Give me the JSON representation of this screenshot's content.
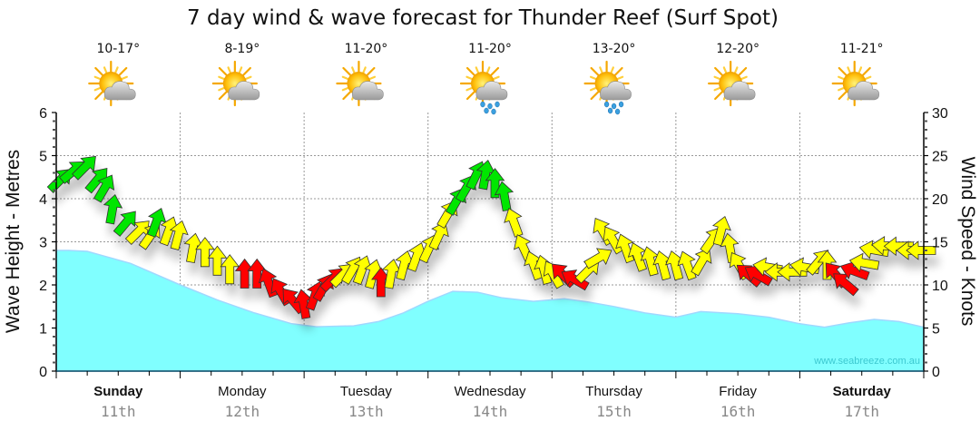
{
  "chart_data": {
    "type": "area",
    "title": "7 day wind & wave forecast for Thunder Reef (Surf Spot)",
    "ylabel_left": "Wave Height - Metres",
    "ylabel_right": "Wind Speed - Knots",
    "ylim_left": [
      0,
      6
    ],
    "ylim_right": [
      0,
      30
    ],
    "yticks_left": [
      "0",
      "1",
      "2",
      "3",
      "4",
      "5",
      "6"
    ],
    "yticks_right": [
      "0",
      "5",
      "10",
      "15",
      "20",
      "25",
      "30"
    ],
    "grid": true,
    "watermark": "www.seabreeze.com.au",
    "days": [
      {
        "name": "Sunday",
        "date": "11th",
        "bold": true,
        "temp": "10-17°",
        "icon": "partly-cloudy-icon"
      },
      {
        "name": "Monday",
        "date": "12th",
        "bold": false,
        "temp": "8-19°",
        "icon": "partly-cloudy-icon"
      },
      {
        "name": "Tuesday",
        "date": "13th",
        "bold": false,
        "temp": "11-20°",
        "icon": "partly-cloudy-icon"
      },
      {
        "name": "Wednesday",
        "date": "14th",
        "bold": false,
        "temp": "11-20°",
        "icon": "showers-icon"
      },
      {
        "name": "Thursday",
        "date": "15th",
        "bold": false,
        "temp": "13-20°",
        "icon": "showers-icon"
      },
      {
        "name": "Friday",
        "date": "16th",
        "bold": false,
        "temp": "12-20°",
        "icon": "partly-cloudy-icon"
      },
      {
        "name": "Saturday",
        "date": "17th",
        "bold": true,
        "temp": "11-21°",
        "icon": "partly-cloudy-icon"
      }
    ],
    "wave_series": {
      "name": "Wave Height (m)",
      "color": "#80ffff",
      "x_days": [
        0,
        0.1,
        0.25,
        0.35,
        0.6,
        1.0,
        1.3,
        1.6,
        1.9,
        2.1,
        2.4,
        2.6,
        2.8,
        3.0,
        3.2,
        3.4,
        3.6,
        3.85,
        4.1,
        4.3,
        4.5,
        4.75,
        5.0,
        5.2,
        5.5,
        5.75,
        6.0,
        6.2,
        6.4,
        6.6,
        6.8,
        7.0
      ],
      "values": [
        2.8,
        2.8,
        2.78,
        2.7,
        2.5,
        2.0,
        1.65,
        1.35,
        1.1,
        1.03,
        1.05,
        1.15,
        1.35,
        1.62,
        1.85,
        1.83,
        1.7,
        1.62,
        1.68,
        1.6,
        1.5,
        1.35,
        1.25,
        1.38,
        1.33,
        1.25,
        1.1,
        1.02,
        1.12,
        1.2,
        1.15,
        1.02
      ]
    },
    "wind_series": {
      "name": "Wind Speed (knots)",
      "legend_colors": {
        "strong": "#00e600",
        "moderate": "#ffff00",
        "light": "#ff0000"
      },
      "points": [
        {
          "t": 0.02,
          "kt": 22,
          "dir": 45,
          "c": "strong"
        },
        {
          "t": 0.12,
          "kt": 23,
          "dir": 50,
          "c": "strong"
        },
        {
          "t": 0.22,
          "kt": 23.5,
          "dir": 45,
          "c": "strong"
        },
        {
          "t": 0.32,
          "kt": 22,
          "dir": 40,
          "c": "strong"
        },
        {
          "t": 0.38,
          "kt": 21,
          "dir": 30,
          "c": "strong"
        },
        {
          "t": 0.45,
          "kt": 18.5,
          "dir": 10,
          "c": "strong"
        },
        {
          "t": 0.55,
          "kt": 17,
          "dir": 40,
          "c": "strong"
        },
        {
          "t": 0.65,
          "kt": 16,
          "dir": 45,
          "c": "moderate"
        },
        {
          "t": 0.75,
          "kt": 15.5,
          "dir": 35,
          "c": "moderate"
        },
        {
          "t": 0.8,
          "kt": 17,
          "dir": 20,
          "c": "strong"
        },
        {
          "t": 0.9,
          "kt": 16,
          "dir": 20,
          "c": "moderate"
        },
        {
          "t": 0.98,
          "kt": 15.5,
          "dir": 15,
          "c": "moderate"
        },
        {
          "t": 1.1,
          "kt": 14,
          "dir": 10,
          "c": "moderate"
        },
        {
          "t": 1.2,
          "kt": 13.5,
          "dir": 0,
          "c": "moderate"
        },
        {
          "t": 1.3,
          "kt": 12.5,
          "dir": 0,
          "c": "moderate"
        },
        {
          "t": 1.4,
          "kt": 11.5,
          "dir": 0,
          "c": "moderate"
        },
        {
          "t": 1.52,
          "kt": 11,
          "dir": 0,
          "c": "light"
        },
        {
          "t": 1.62,
          "kt": 11,
          "dir": 0,
          "c": "light"
        },
        {
          "t": 1.72,
          "kt": 10,
          "dir": -20,
          "c": "light"
        },
        {
          "t": 1.82,
          "kt": 9,
          "dir": -30,
          "c": "light"
        },
        {
          "t": 1.92,
          "kt": 8,
          "dir": -40,
          "c": "light"
        },
        {
          "t": 2.0,
          "kt": 7.5,
          "dir": -10,
          "c": "light"
        },
        {
          "t": 2.08,
          "kt": 8.5,
          "dir": 20,
          "c": "light"
        },
        {
          "t": 2.15,
          "kt": 9.5,
          "dir": 30,
          "c": "light"
        },
        {
          "t": 2.22,
          "kt": 10.5,
          "dir": 45,
          "c": "light"
        },
        {
          "t": 2.3,
          "kt": 11,
          "dir": 45,
          "c": "moderate"
        },
        {
          "t": 2.38,
          "kt": 11.5,
          "dir": 30,
          "c": "moderate"
        },
        {
          "t": 2.46,
          "kt": 11.5,
          "dir": 20,
          "c": "moderate"
        },
        {
          "t": 2.55,
          "kt": 11,
          "dir": 15,
          "c": "moderate"
        },
        {
          "t": 2.62,
          "kt": 10,
          "dir": 0,
          "c": "light"
        },
        {
          "t": 2.7,
          "kt": 11,
          "dir": 10,
          "c": "moderate"
        },
        {
          "t": 2.8,
          "kt": 12,
          "dir": 15,
          "c": "moderate"
        },
        {
          "t": 2.9,
          "kt": 13,
          "dir": 20,
          "c": "moderate"
        },
        {
          "t": 3.0,
          "kt": 14,
          "dir": 25,
          "c": "moderate"
        },
        {
          "t": 3.08,
          "kt": 15.5,
          "dir": 25,
          "c": "moderate"
        },
        {
          "t": 3.15,
          "kt": 18,
          "dir": 30,
          "c": "moderate"
        },
        {
          "t": 3.22,
          "kt": 19.5,
          "dir": 30,
          "c": "strong"
        },
        {
          "t": 3.3,
          "kt": 21,
          "dir": 30,
          "c": "strong"
        },
        {
          "t": 3.38,
          "kt": 22.5,
          "dir": 25,
          "c": "strong"
        },
        {
          "t": 3.46,
          "kt": 22.5,
          "dir": 10,
          "c": "strong"
        },
        {
          "t": 3.54,
          "kt": 21.5,
          "dir": 0,
          "c": "strong"
        },
        {
          "t": 3.62,
          "kt": 20,
          "dir": -10,
          "c": "strong"
        },
        {
          "t": 3.7,
          "kt": 17,
          "dir": -20,
          "c": "moderate"
        },
        {
          "t": 3.78,
          "kt": 14,
          "dir": -25,
          "c": "moderate"
        },
        {
          "t": 3.86,
          "kt": 12,
          "dir": -20,
          "c": "moderate"
        },
        {
          "t": 3.94,
          "kt": 11.5,
          "dir": -15,
          "c": "moderate"
        },
        {
          "t": 4.02,
          "kt": 11,
          "dir": -30,
          "c": "moderate"
        },
        {
          "t": 4.1,
          "kt": 11,
          "dir": -45,
          "c": "light"
        },
        {
          "t": 4.2,
          "kt": 10.5,
          "dir": -60,
          "c": "light"
        },
        {
          "t": 4.28,
          "kt": 11.5,
          "dir": 45,
          "c": "moderate"
        },
        {
          "t": 4.36,
          "kt": 13,
          "dir": 60,
          "c": "moderate"
        },
        {
          "t": 4.42,
          "kt": 16,
          "dir": -30,
          "c": "moderate"
        },
        {
          "t": 4.5,
          "kt": 15,
          "dir": -30,
          "c": "moderate"
        },
        {
          "t": 4.6,
          "kt": 14,
          "dir": -20,
          "c": "moderate"
        },
        {
          "t": 4.7,
          "kt": 13,
          "dir": -20,
          "c": "moderate"
        },
        {
          "t": 4.8,
          "kt": 12.5,
          "dir": -15,
          "c": "moderate"
        },
        {
          "t": 4.9,
          "kt": 12,
          "dir": -15,
          "c": "moderate"
        },
        {
          "t": 5.0,
          "kt": 12,
          "dir": -15,
          "c": "moderate"
        },
        {
          "t": 5.1,
          "kt": 12,
          "dir": -20,
          "c": "moderate"
        },
        {
          "t": 5.2,
          "kt": 12.5,
          "dir": 30,
          "c": "moderate"
        },
        {
          "t": 5.28,
          "kt": 15,
          "dir": 35,
          "c": "moderate"
        },
        {
          "t": 5.36,
          "kt": 16,
          "dir": 15,
          "c": "moderate"
        },
        {
          "t": 5.44,
          "kt": 14,
          "dir": -10,
          "c": "moderate"
        },
        {
          "t": 5.52,
          "kt": 12,
          "dir": -30,
          "c": "moderate"
        },
        {
          "t": 5.6,
          "kt": 11,
          "dir": -50,
          "c": "light"
        },
        {
          "t": 5.68,
          "kt": 11,
          "dir": -60,
          "c": "light"
        },
        {
          "t": 5.76,
          "kt": 12,
          "dir": -80,
          "c": "moderate"
        },
        {
          "t": 5.86,
          "kt": 11.5,
          "dir": -90,
          "c": "moderate"
        },
        {
          "t": 5.96,
          "kt": 11.5,
          "dir": -90,
          "c": "moderate"
        },
        {
          "t": 6.06,
          "kt": 12,
          "dir": -80,
          "c": "moderate"
        },
        {
          "t": 6.14,
          "kt": 12.5,
          "dir": 40,
          "c": "moderate"
        },
        {
          "t": 6.22,
          "kt": 12,
          "dir": 0,
          "c": "moderate"
        },
        {
          "t": 6.3,
          "kt": 11,
          "dir": -40,
          "c": "light"
        },
        {
          "t": 6.38,
          "kt": 10,
          "dir": -50,
          "c": "light"
        },
        {
          "t": 6.46,
          "kt": 11.5,
          "dir": -70,
          "c": "light"
        },
        {
          "t": 6.54,
          "kt": 12.5,
          "dir": -80,
          "c": "moderate"
        },
        {
          "t": 6.62,
          "kt": 14,
          "dir": -80,
          "c": "moderate"
        },
        {
          "t": 6.72,
          "kt": 14.5,
          "dir": -85,
          "c": "moderate"
        },
        {
          "t": 6.82,
          "kt": 14.5,
          "dir": -90,
          "c": "moderate"
        },
        {
          "t": 6.92,
          "kt": 14,
          "dir": -90,
          "c": "moderate"
        },
        {
          "t": 7.0,
          "kt": 14,
          "dir": -90,
          "c": "moderate"
        }
      ]
    }
  }
}
